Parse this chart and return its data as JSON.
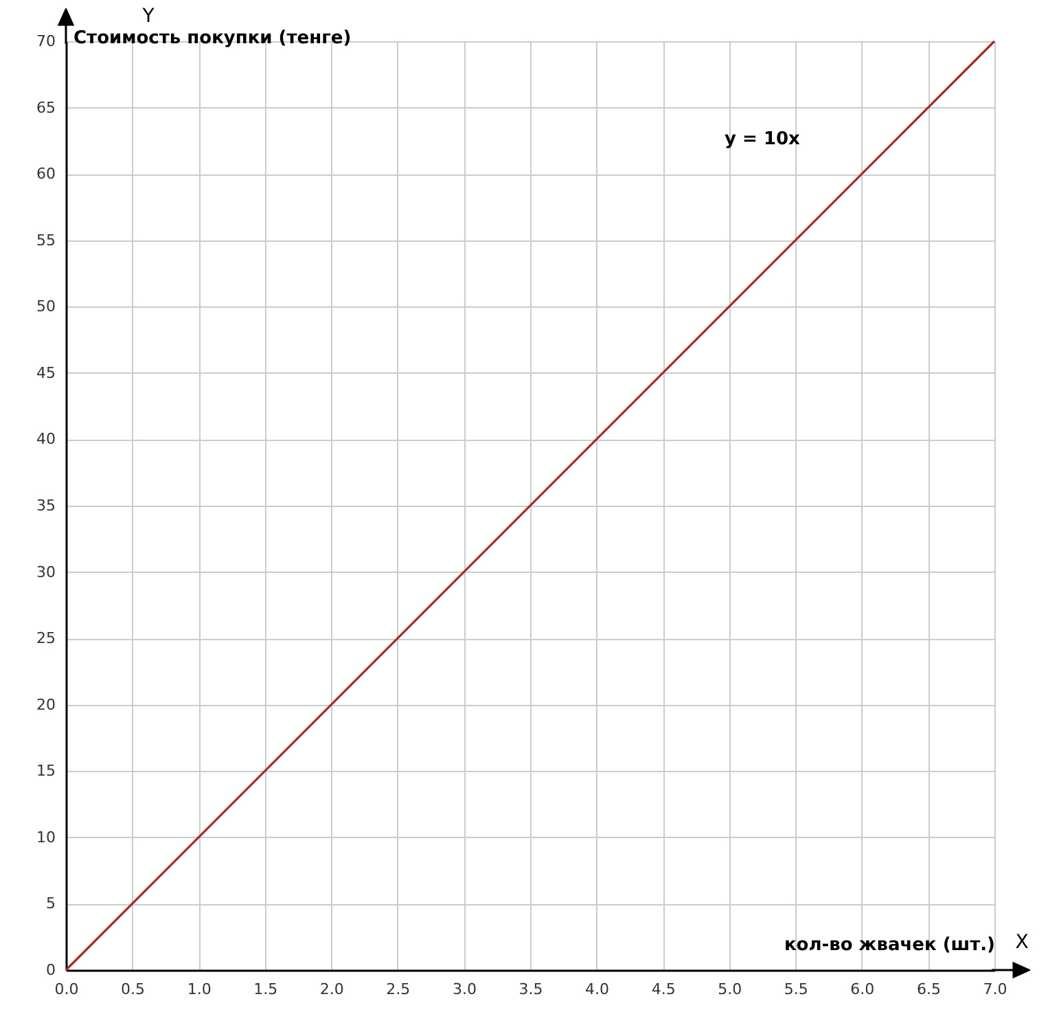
{
  "chart_data": {
    "type": "line",
    "xlabel": "кол-во жвачек (шт.)",
    "ylabel": "Стоимость покупки (тенге)",
    "annotations": [
      "y = 10x",
      "Y",
      "X"
    ],
    "series": [
      {
        "x": [
          0,
          7
        ],
        "values": [
          0,
          70
        ],
        "color": "#a52a2a"
      }
    ],
    "xlim": [
      0,
      7
    ],
    "ylim": [
      0,
      70
    ],
    "xticks": [
      {
        "value": 0,
        "label": "0.0"
      },
      {
        "value": 0.5,
        "label": "0.5"
      },
      {
        "value": 1,
        "label": "1.0"
      },
      {
        "value": 1.5,
        "label": "1.5"
      },
      {
        "value": 2,
        "label": "2.0"
      },
      {
        "value": 2.5,
        "label": "2.5"
      },
      {
        "value": 3,
        "label": "3.0"
      },
      {
        "value": 3.5,
        "label": "3.5"
      },
      {
        "value": 4,
        "label": "4.0"
      },
      {
        "value": 4.5,
        "label": "4.5"
      },
      {
        "value": 5,
        "label": "5.0"
      },
      {
        "value": 5.5,
        "label": "5.5"
      },
      {
        "value": 6,
        "label": "6.0"
      },
      {
        "value": 6.5,
        "label": "6.5"
      },
      {
        "value": 7,
        "label": "7.0"
      }
    ],
    "yticks": [
      0,
      5,
      10,
      15,
      20,
      25,
      30,
      35,
      40,
      45,
      50,
      55,
      60,
      65,
      70
    ],
    "grid": true
  }
}
